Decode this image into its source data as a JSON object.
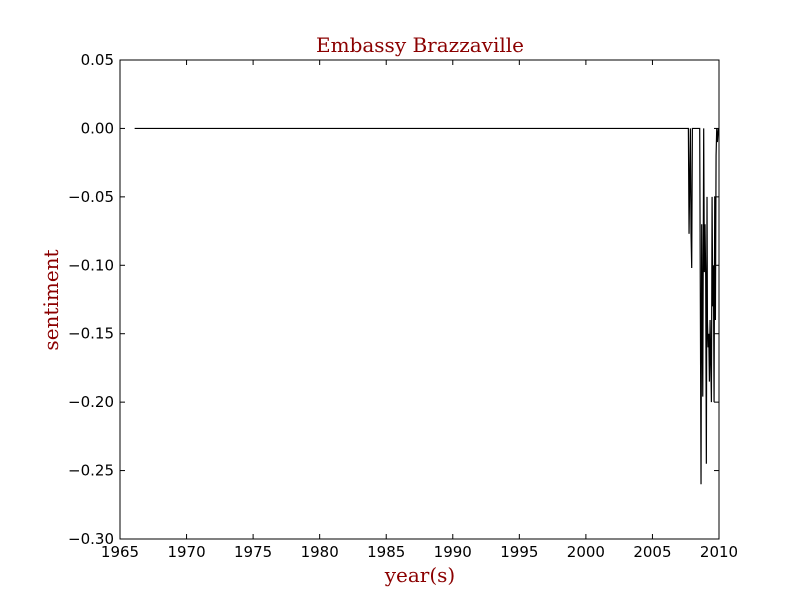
{
  "chart_data": {
    "type": "line",
    "title": "Embassy Brazzaville",
    "xlabel": "year(s)",
    "ylabel": "sentiment",
    "xlim": [
      1965,
      2010
    ],
    "ylim": [
      -0.3,
      0.05
    ],
    "xticks": [
      1965,
      1970,
      1975,
      1980,
      1985,
      1990,
      1995,
      2000,
      2005,
      2010
    ],
    "yticks": [
      0.05,
      0.0,
      -0.05,
      -0.1,
      -0.15,
      -0.2,
      -0.25,
      -0.3
    ],
    "ytick_labels": [
      "0.05",
      "0.00",
      "−0.05",
      "−0.10",
      "−0.15",
      "−0.20",
      "−0.25",
      "−0.30"
    ],
    "xtick_labels": [
      "1965",
      "1970",
      "1975",
      "1980",
      "1985",
      "1990",
      "1995",
      "2000",
      "2005",
      "2010"
    ],
    "grid": false,
    "series": [
      {
        "color": "#000000",
        "x": [
          1966.1,
          2007.7,
          2007.75,
          2007.85,
          2007.9,
          2007.95,
          2008.0,
          2008.05,
          2008.3,
          2008.55,
          2008.65,
          2008.7,
          2008.78,
          2008.85,
          2008.9,
          2008.95,
          2009.0,
          2009.05,
          2009.1,
          2009.13,
          2009.18,
          2009.23,
          2009.28,
          2009.33,
          2009.38,
          2009.43,
          2009.48,
          2009.53,
          2009.58,
          2009.63,
          2009.68,
          2009.73,
          2009.78,
          2009.83,
          2009.88,
          2009.95
        ],
        "y": [
          0.0,
          0.0,
          -0.077,
          0.0,
          -0.077,
          -0.102,
          0.0,
          0.0,
          0.0,
          0.0,
          -0.26,
          -0.07,
          -0.196,
          0.0,
          -0.105,
          -0.07,
          -0.108,
          -0.245,
          -0.05,
          -0.14,
          -0.16,
          -0.15,
          -0.185,
          -0.14,
          -0.17,
          -0.2,
          -0.05,
          -0.13,
          -0.1,
          -0.2,
          -0.05,
          -0.14,
          -0.02,
          0.0,
          -0.01,
          0.0
        ]
      }
    ]
  }
}
